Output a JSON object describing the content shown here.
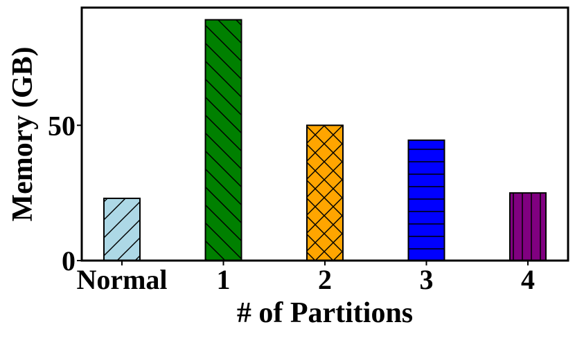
{
  "chart_data": {
    "type": "bar",
    "title": "",
    "xlabel": "# of Partitions",
    "ylabel": "Memory (GB)",
    "categories": [
      "Normal",
      "1",
      "2",
      "3",
      "4"
    ],
    "values": [
      23,
      89,
      50,
      44.5,
      25
    ],
    "ylim": [
      0,
      93.5
    ],
    "yticks": [
      0,
      50
    ],
    "ytick_labels": [
      "0",
      "50"
    ],
    "grid": false,
    "legend": "none",
    "bar_colors": [
      "#add8e6",
      "#008000",
      "#ffa500",
      "#0000ff",
      "#800080"
    ],
    "bar_hatches": [
      "/",
      "\\",
      "x",
      "-",
      "|"
    ]
  }
}
